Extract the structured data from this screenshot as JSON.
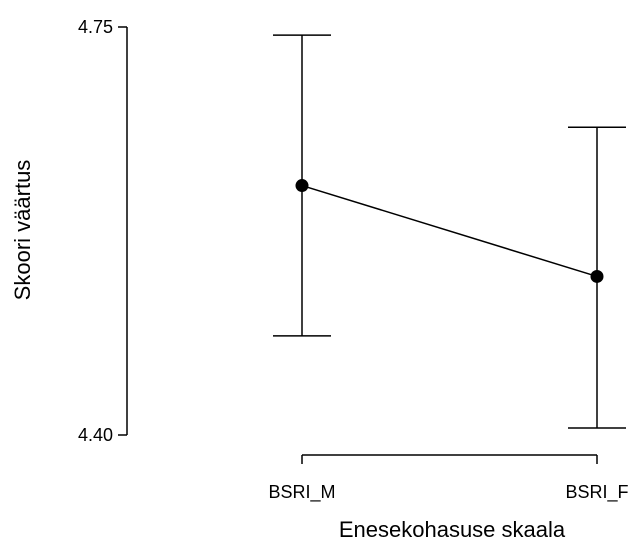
{
  "chart_data": {
    "type": "line",
    "title": "",
    "xlabel": "Enesekohasuse skaala",
    "ylabel": "Skoori väärtus",
    "categories": [
      "BSRI_M",
      "BSRI_F"
    ],
    "ylim": [
      4.4,
      4.75
    ],
    "yticks": [
      "4.40",
      "4.75"
    ],
    "grid": false,
    "series": [
      {
        "values": [
          4.614,
          4.536
        ],
        "lower": [
          4.485,
          4.406
        ],
        "upper": [
          4.743,
          4.664
        ]
      }
    ]
  }
}
